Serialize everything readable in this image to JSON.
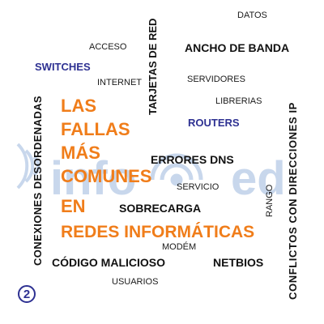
{
  "colors": {
    "orange": "#f07d1a",
    "blue": "#2e3192",
    "black": "#111111",
    "watermark": "#c8d7ec"
  },
  "watermark": {
    "left": "info",
    "right": "ed",
    "icon": "wifi-icon"
  },
  "headline": [
    "LAS",
    "FALLAS",
    "MÁS",
    "COMUNES",
    "EN",
    "REDES INFORMÁTICAS"
  ],
  "words": {
    "datos": "DATOS",
    "acceso": "ACCESO",
    "ancho_de_banda": "ANCHO DE BANDA",
    "switches": "SWITCHES",
    "internet": "INTERNET",
    "tarjetas_de_red": "TARJETAS DE RED",
    "servidores": "SERVIDORES",
    "librerias": "LIBRERIAS",
    "routers": "ROUTERS",
    "errores_dns": "ERRORES DNS",
    "servicio": "SERVICIO",
    "sobrecarga": "SOBRECARGA",
    "rango": "RANGO",
    "modem": "MODÉM",
    "codigo_malicioso": "CÓDIGO MALICIOSO",
    "netbios": "NETBIOS",
    "usuarios": "USUARIOS",
    "conexiones_desordenadas": "CONEXIONES DESORDENADAS",
    "conflictos_ip": "CONFLICTOS CON DIRECCIONES IP"
  },
  "badge": "2"
}
